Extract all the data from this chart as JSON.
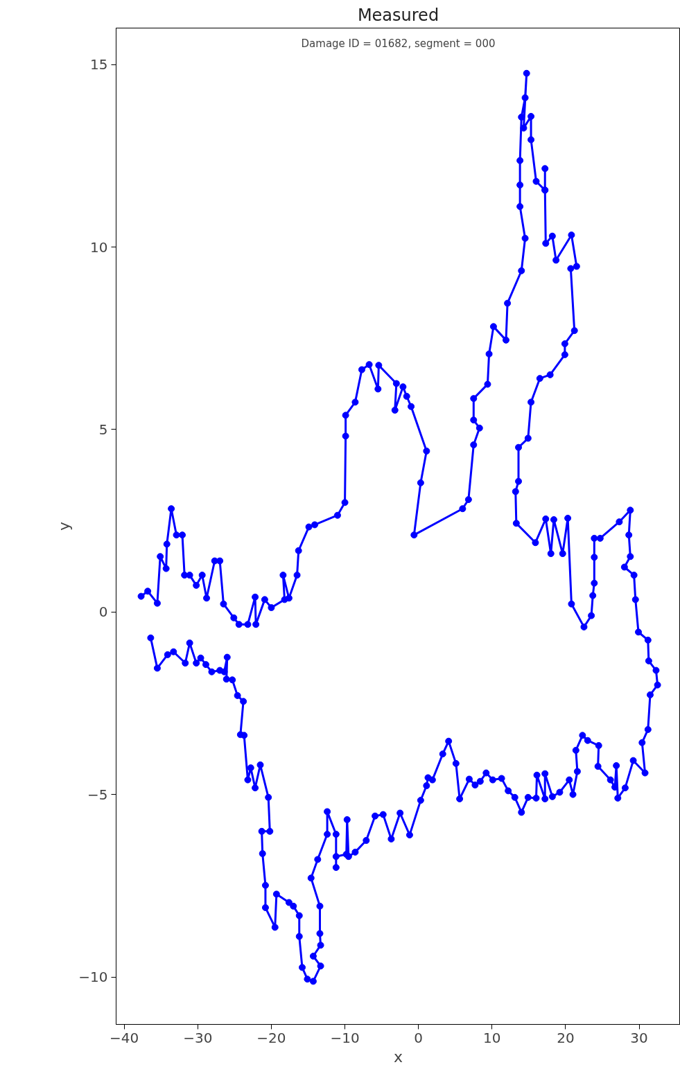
{
  "chart_data": {
    "type": "line",
    "title": "Measured",
    "xlabel": "x",
    "ylabel": "y",
    "annotations": [
      "Damage ID = 01682, segment = 000"
    ],
    "xlim": [
      -41.1,
      35.6
    ],
    "xticks": [
      -40,
      -30,
      -20,
      -10,
      0,
      10,
      20,
      30
    ],
    "ylim": [
      -11.3,
      16.0
    ],
    "yticks": [
      -10,
      -5,
      0,
      5,
      10,
      15
    ],
    "marker": "circle",
    "line_style": "solid",
    "grid": false,
    "series": [
      {
        "color": "#0000ff",
        "x": [
          -37.7,
          -36.8,
          -35.5,
          -35.1,
          -34.3,
          -34.2,
          -33.6,
          -32.9,
          -32.1,
          -31.8,
          -31.1,
          -30.2,
          -29.4,
          -28.8,
          -27.7,
          -27.0,
          -26.5,
          -25.1,
          -24.4,
          -23.2,
          -22.2,
          -22.1,
          -20.9,
          -20.0,
          -18.2,
          -18.4,
          -17.6,
          -16.5,
          -16.3,
          -14.9,
          -14.1,
          -11.0,
          -10.0,
          -9.9,
          -9.9,
          -8.6,
          -7.7,
          -6.7,
          -5.5,
          -5.4,
          -3.0,
          -3.2,
          -2.1,
          -1.6,
          -1.0,
          1.1,
          0.3,
          -0.6,
          6.0,
          6.8,
          7.5,
          8.3,
          7.5,
          7.5,
          9.4,
          9.6,
          10.2,
          11.9,
          12.1,
          14.0,
          14.5,
          13.8,
          13.8,
          13.8,
          14.0,
          14.5,
          14.7,
          14.3,
          15.3,
          15.3,
          16.0,
          17.2,
          17.2,
          17.2,
          17.3,
          18.2,
          18.7,
          20.8,
          21.5,
          20.7,
          21.2,
          19.9,
          19.9,
          17.9,
          16.5,
          15.3,
          14.9,
          13.6,
          13.6,
          13.2,
          13.3,
          15.9,
          17.3,
          18.0,
          18.4,
          19.6,
          20.3,
          20.8,
          22.5,
          23.5,
          23.7,
          23.9,
          23.9,
          23.9,
          24.7,
          27.3,
          28.8,
          28.6,
          28.8,
          28.0,
          29.3,
          29.5,
          29.9,
          31.2,
          31.3,
          32.3,
          32.5,
          31.5,
          31.2,
          30.4,
          30.8,
          29.2,
          28.1,
          27.1,
          26.9,
          26.7,
          26.1,
          24.4,
          24.5,
          23.0,
          22.3,
          21.4,
          21.6,
          21.0,
          20.5,
          19.2,
          18.2,
          17.2,
          17.2,
          16.1,
          16.0,
          14.9,
          14.0,
          13.1,
          12.2,
          11.3,
          10.1,
          9.2,
          8.4,
          7.7,
          6.9,
          5.6,
          5.1,
          4.1,
          3.3,
          1.9,
          1.3,
          1.1,
          0.3,
          -1.2,
          -2.5,
          -3.7,
          -4.8,
          -5.9,
          -7.1,
          -8.6,
          -9.5,
          -9.7,
          -9.8,
          -11.2,
          -11.2,
          -11.2,
          -12.4,
          -12.4,
          -13.7,
          -14.6,
          -13.4,
          -13.4,
          -13.3,
          -14.3,
          -13.3,
          -14.3,
          -15.1,
          -15.8,
          -16.2,
          -16.2,
          -17.0,
          -17.6,
          -19.3,
          -19.5,
          -20.8,
          -20.8,
          -21.2,
          -21.3,
          -20.2,
          -20.4,
          -21.5,
          -22.2,
          -22.8,
          -23.2,
          -23.7,
          -24.2,
          -23.8,
          -24.6,
          -25.3,
          -26.1,
          -26.0,
          -26.4,
          -27.0,
          -28.1,
          -28.9,
          -29.6,
          -30.2,
          -31.1,
          -31.7,
          -33.3,
          -34.1,
          -35.5,
          -36.4
        ],
        "values": [
          0.43,
          0.57,
          0.24,
          1.52,
          1.19,
          1.86,
          2.83,
          2.11,
          2.11,
          1.01,
          1.01,
          0.73,
          1.01,
          0.38,
          1.4,
          1.4,
          0.22,
          -0.16,
          -0.34,
          -0.34,
          0.41,
          -0.34,
          0.34,
          0.12,
          0.34,
          1.01,
          0.38,
          1.01,
          1.68,
          2.33,
          2.39,
          2.65,
          3.0,
          4.82,
          5.39,
          5.75,
          6.64,
          6.78,
          6.11,
          6.76,
          6.26,
          5.53,
          6.17,
          5.91,
          5.63,
          4.41,
          3.54,
          2.11,
          2.83,
          3.08,
          4.58,
          5.04,
          5.26,
          5.85,
          6.24,
          7.07,
          7.82,
          7.45,
          8.46,
          9.35,
          10.24,
          11.11,
          11.7,
          12.37,
          13.56,
          14.09,
          14.76,
          13.26,
          13.58,
          12.94,
          11.8,
          11.56,
          12.15,
          11.56,
          10.1,
          10.3,
          9.64,
          10.33,
          9.47,
          9.41,
          7.71,
          7.35,
          7.05,
          6.5,
          6.4,
          5.75,
          4.76,
          4.51,
          3.58,
          3.3,
          2.43,
          1.9,
          2.55,
          1.6,
          2.53,
          1.6,
          2.57,
          0.22,
          -0.41,
          -0.1,
          0.45,
          0.79,
          1.5,
          2.02,
          2.02,
          2.47,
          2.79,
          2.11,
          1.52,
          1.23,
          1.01,
          0.34,
          -0.55,
          -0.77,
          -1.34,
          -1.6,
          -2.0,
          -2.27,
          -3.22,
          -3.58,
          -4.41,
          -4.07,
          -4.82,
          -5.1,
          -4.21,
          -4.8,
          -4.6,
          -4.23,
          -3.66,
          -3.52,
          -3.38,
          -3.79,
          -4.37,
          -5.0,
          -4.6,
          -4.94,
          -5.06,
          -4.43,
          -5.12,
          -4.47,
          -5.1,
          -5.08,
          -5.49,
          -5.08,
          -4.9,
          -4.56,
          -4.6,
          -4.41,
          -4.64,
          -4.74,
          -4.58,
          -5.12,
          -4.15,
          -3.54,
          -3.89,
          -4.6,
          -4.54,
          -4.76,
          -5.16,
          -6.11,
          -5.51,
          -6.22,
          -5.55,
          -5.59,
          -6.26,
          -6.58,
          -6.7,
          -5.69,
          -6.64,
          -6.7,
          -7.0,
          -6.09,
          -5.47,
          -6.09,
          -6.78,
          -7.29,
          -8.06,
          -8.81,
          -9.13,
          -9.43,
          -9.7,
          -10.12,
          -10.06,
          -9.74,
          -8.89,
          -8.32,
          -8.06,
          -7.96,
          -7.73,
          -8.64,
          -8.1,
          -7.49,
          -6.62,
          -6.01,
          -6.01,
          -5.08,
          -4.19,
          -4.82,
          -4.27,
          -4.6,
          -3.38,
          -3.36,
          -2.45,
          -2.29,
          -1.86,
          -1.84,
          -1.24,
          -1.64,
          -1.6,
          -1.64,
          -1.44,
          -1.26,
          -1.4,
          -0.85,
          -1.4,
          -1.09,
          -1.17,
          -1.54,
          -0.71
        ]
      }
    ]
  }
}
